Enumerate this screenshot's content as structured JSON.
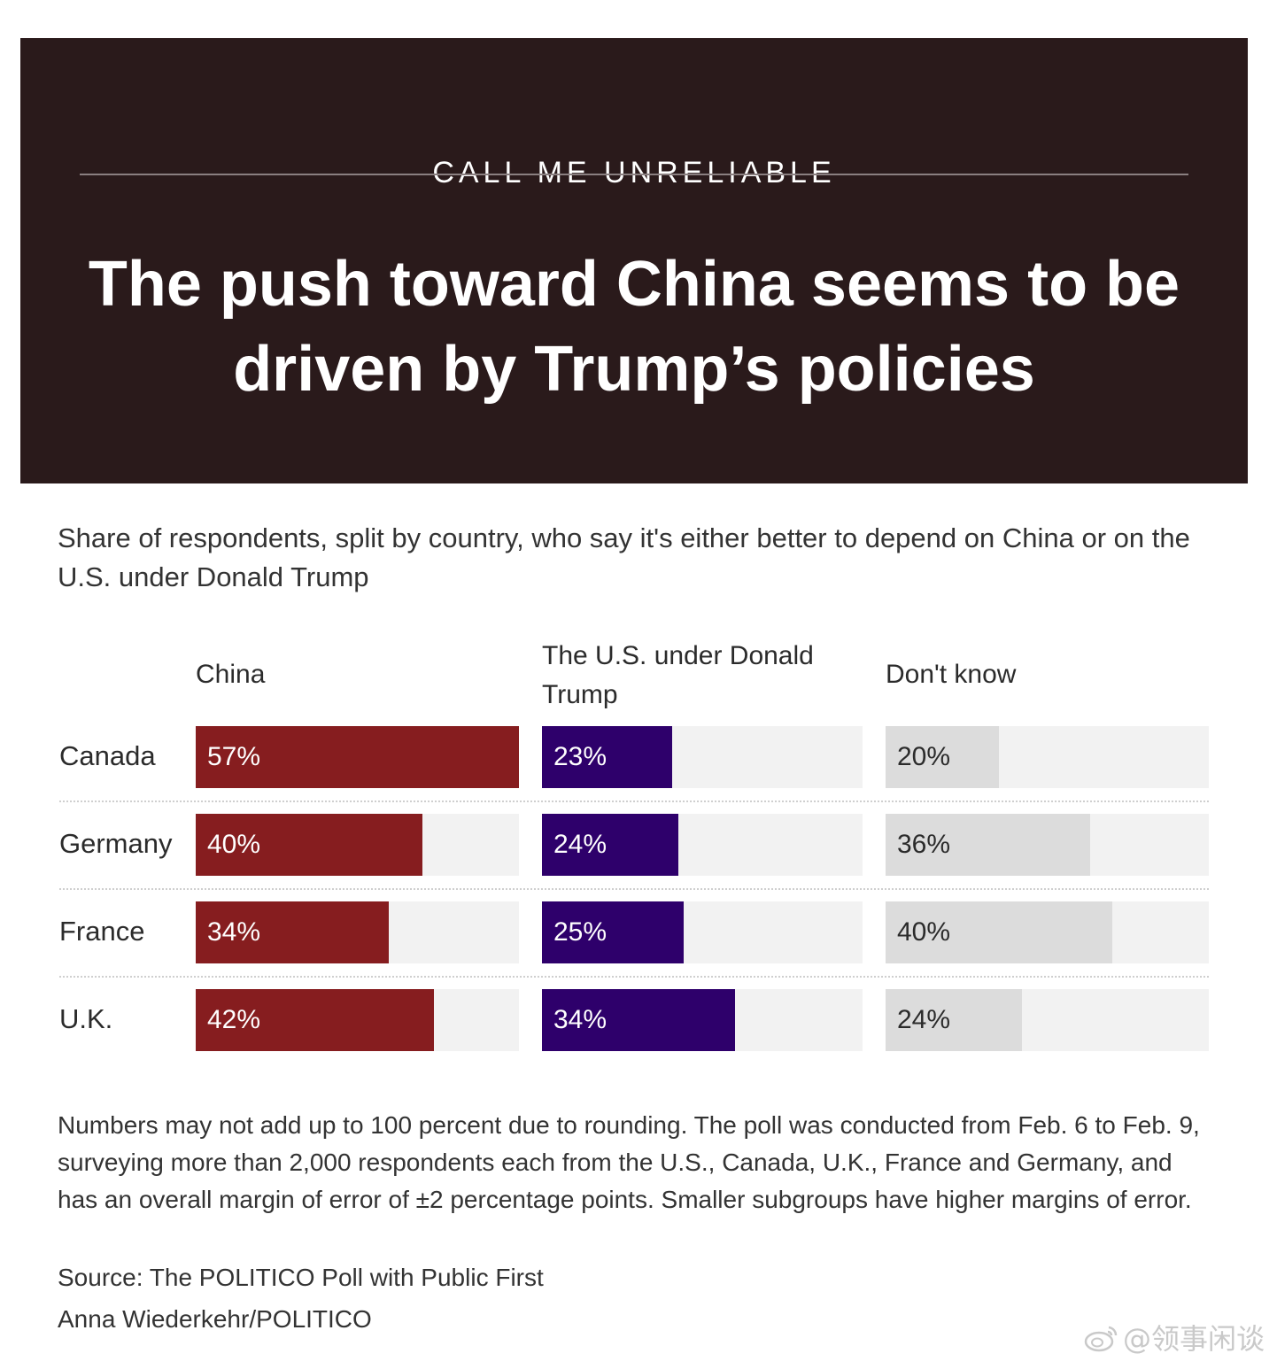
{
  "header": {
    "kicker": "CALL ME UNRELIABLE",
    "headline": "The push toward China seems to be driven by Trump’s policies",
    "background_color": "#2a1a1b"
  },
  "subtitle": "Share of respondents, split by country, who say it's either better to depend on China or on the U.S. under Donald Trump",
  "chart_data": {
    "type": "bar",
    "orientation": "horizontal",
    "categories": [
      "Canada",
      "Germany",
      "France",
      "U.K."
    ],
    "series": [
      {
        "name": "China",
        "values": [
          57,
          40,
          34,
          42
        ],
        "color": "#861d1f",
        "label_color": "#ffffff"
      },
      {
        "name": "The U.S. under Donald Trump",
        "values": [
          23,
          24,
          25,
          34
        ],
        "color": "#2e006b",
        "label_color": "#ffffff"
      },
      {
        "name": "Don't know",
        "values": [
          20,
          36,
          40,
          24
        ],
        "color": "#dcdcdc",
        "label_color": "#2b2b2b"
      }
    ],
    "value_format": "{v}%",
    "xlim": [
      0,
      57
    ],
    "track_color": "#f2f2f2",
    "grid": false
  },
  "notes": "Numbers may not add up to 100 percent due to rounding. The poll was conducted from Feb. 6 to Feb. 9, surveying more than 2,000 respondents each from the U.S., Canada, U.K., France and Germany, and has an overall margin of error of ±2 percentage points. Smaller subgroups have higher margins of error.",
  "source": "Source: The POLITICO Poll with Public First",
  "credit": "Anna Wiederkehr/POLITICO",
  "watermark": {
    "text": "@领事闲谈",
    "icon": "weibo-icon"
  }
}
